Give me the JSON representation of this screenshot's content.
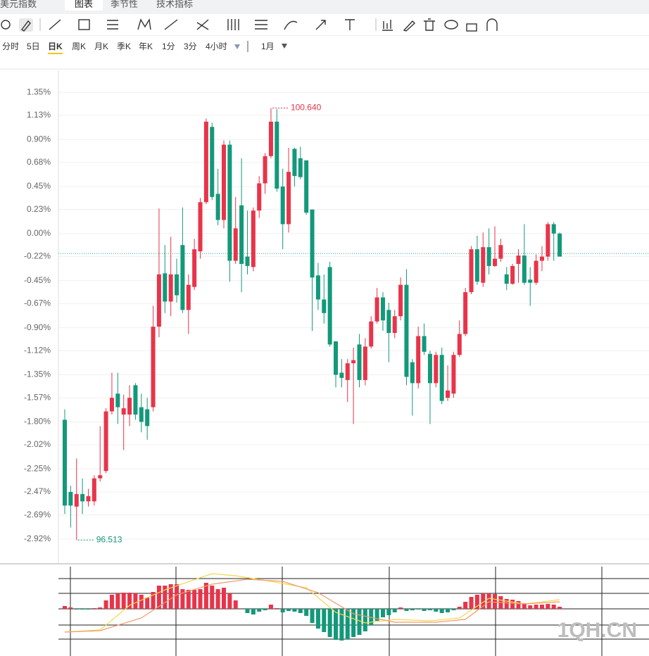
{
  "tabs": [
    "美元指数",
    "图表",
    "季节性",
    "技术指标"
  ],
  "periods": [
    "分时",
    "5日",
    "日K",
    "周K",
    "月K",
    "季K",
    "年K",
    "1分",
    "3分",
    "4小时",
    "1月"
  ],
  "active_period": "日K",
  "watermark": "1QH.CN",
  "chart_data": {
    "type": "candlestick",
    "up_color": "#e8344a",
    "down_color": "#12997a",
    "ylim": [
      -3.15,
      1.56
    ],
    "yticks": [
      {
        "value": 1.35,
        "label": "1.35%"
      },
      {
        "value": 1.13,
        "label": "1.13%"
      },
      {
        "value": 0.9,
        "label": "0.90%"
      },
      {
        "value": 0.68,
        "label": "0.68%"
      },
      {
        "value": 0.45,
        "label": "0.45%"
      },
      {
        "value": 0.23,
        "label": "0.23%"
      },
      {
        "value": 0,
        "label": "0.00%"
      },
      {
        "value": -0.22,
        "label": "-0.22%"
      },
      {
        "value": -0.45,
        "label": "-0.45%"
      },
      {
        "value": -0.67,
        "label": "-0.67%"
      },
      {
        "value": -0.9,
        "label": "-0.90%"
      },
      {
        "value": -1.12,
        "label": "-1.12%"
      },
      {
        "value": -1.35,
        "label": "-1.35%"
      },
      {
        "value": -1.57,
        "label": "-1.57%"
      },
      {
        "value": -1.8,
        "label": "-1.80%"
      },
      {
        "value": -2.02,
        "label": "-2.02%"
      },
      {
        "value": -2.25,
        "label": "-2.25%"
      },
      {
        "value": -2.47,
        "label": "-2.47%"
      },
      {
        "value": -2.69,
        "label": "-2.69%"
      },
      {
        "value": -2.92,
        "label": "-2.92%"
      }
    ],
    "grid": true,
    "open": [
      -1.78,
      -2.47,
      -2.61,
      -2.49,
      -2.56,
      -2.56,
      -2.34,
      -2.27,
      -1.7,
      -1.53,
      -1.73,
      -1.73,
      -1.45,
      -1.66,
      -1.68,
      -1.66,
      -0.89,
      -0.38,
      -0.65,
      -0.39,
      -0.11,
      -0.73,
      -0.51,
      -0.17,
      0.3,
      1.02,
      0.38,
      0.13,
      0.85,
      -0.26,
      0.27,
      -0.22,
      -0.32,
      0.22,
      0.48,
      0.74,
      1.07,
      0.45,
      0.09,
      0.81,
      0.72,
      0.7,
      0.23,
      -0.4,
      -0.63,
      -0.32,
      -1.03,
      -1.33,
      -1.4,
      -1.24,
      -1.06,
      -1.4,
      -1.08,
      -0.84,
      -0.61,
      -0.73,
      -0.95,
      -0.79,
      -0.49,
      -1.23,
      -1.43,
      -0.98,
      -1.15,
      -1.43,
      -1.16,
      -1.57,
      -1.53,
      -1.16,
      -0.96,
      -0.56,
      -0.15,
      -0.47,
      -0.13,
      -0.31,
      -0.24,
      -0.39,
      -0.48,
      -0.29,
      -0.21,
      -0.44,
      -0.47,
      -0.26,
      -0.22,
      0.09,
      0.0
    ],
    "high": [
      -1.68,
      -2.41,
      -2.15,
      -2.34,
      -2.44,
      -2.31,
      -1.84,
      -1.67,
      -1.33,
      -1.33,
      -1.54,
      -1.45,
      -1.43,
      -1.53,
      -1.57,
      -0.69,
      0.24,
      -0.11,
      -0.03,
      -0.24,
      0.25,
      -0.39,
      -0.05,
      0.34,
      1.1,
      1.06,
      0.62,
      0.89,
      0.89,
      0.35,
      0.72,
      0.22,
      0.25,
      0.55,
      0.77,
      1.2,
      1.19,
      0.62,
      0.82,
      0.82,
      0.83,
      0.7,
      0.23,
      -0.28,
      -0.39,
      -0.27,
      -1.03,
      -1.2,
      -1.2,
      -1.09,
      -0.96,
      -1.0,
      -0.79,
      -0.52,
      -0.56,
      -0.66,
      -0.73,
      -0.42,
      -0.34,
      -1.2,
      -0.89,
      -0.86,
      -1.12,
      -1.13,
      -1.09,
      -1.26,
      -1.13,
      -0.83,
      -0.52,
      -0.12,
      -0.02,
      0.01,
      0.05,
      0.07,
      -0.05,
      -0.32,
      -0.29,
      -0.15,
      0.09,
      -0.32,
      -0.2,
      -0.12,
      0.11,
      0.11,
      0.01
    ],
    "low": [
      -2.68,
      -2.81,
      -2.93,
      -2.68,
      -2.61,
      -2.6,
      -2.37,
      -2.29,
      -1.73,
      -1.82,
      -2.07,
      -1.84,
      -1.78,
      -1.9,
      -1.97,
      -1.7,
      -0.99,
      -0.76,
      -0.79,
      -0.66,
      -0.76,
      -0.96,
      -0.54,
      -0.24,
      0.28,
      0.32,
      0.08,
      0.05,
      -0.46,
      -0.29,
      -0.56,
      -0.39,
      -0.36,
      0.15,
      0.38,
      0.72,
      0.4,
      -0.15,
      0.01,
      0.45,
      0.52,
      0.18,
      -0.93,
      -0.73,
      -0.86,
      -1.08,
      -1.47,
      -1.47,
      -1.61,
      -1.82,
      -1.47,
      -1.45,
      -1.1,
      -0.86,
      -0.93,
      -1.23,
      -1.0,
      -0.83,
      -1.45,
      -1.74,
      -1.48,
      -1.16,
      -1.82,
      -1.47,
      -1.63,
      -1.6,
      -1.57,
      -1.18,
      -0.98,
      -0.58,
      -0.49,
      -0.51,
      -0.39,
      -0.32,
      -0.27,
      -0.54,
      -0.49,
      -0.47,
      -0.49,
      -0.69,
      -0.49,
      -0.36,
      -0.26,
      -0.26,
      -0.22
    ],
    "close": [
      -2.6,
      -2.6,
      -2.49,
      -2.56,
      -2.51,
      -2.34,
      -2.31,
      -1.7,
      -1.57,
      -1.66,
      -1.67,
      -1.57,
      -1.73,
      -1.8,
      -1.84,
      -0.89,
      -0.39,
      -0.65,
      -0.39,
      -0.59,
      -0.73,
      -0.49,
      -0.15,
      0.3,
      1.07,
      0.35,
      0.13,
      0.85,
      -0.26,
      0.05,
      -0.29,
      -0.31,
      0.22,
      0.48,
      0.74,
      1.07,
      0.43,
      0.09,
      0.59,
      0.55,
      0.54,
      0.2,
      -0.42,
      -0.63,
      -0.76,
      -1.06,
      -1.35,
      -1.38,
      -1.24,
      -1.21,
      -1.4,
      -1.08,
      -0.84,
      -0.61,
      -0.83,
      -0.95,
      -0.79,
      -0.49,
      -1.37,
      -1.43,
      -0.98,
      -1.13,
      -1.43,
      -1.16,
      -1.6,
      -1.5,
      -1.16,
      -0.96,
      -0.56,
      -0.15,
      -0.46,
      -0.13,
      -0.31,
      -0.24,
      -0.11,
      -0.48,
      -0.31,
      -0.21,
      -0.47,
      -0.47,
      -0.26,
      -0.22,
      0.09,
      0.0,
      -0.22
    ],
    "high_label": "100.640",
    "low_label": "96.513",
    "price_line": -0.19,
    "macd": {
      "ylim": [
        -60,
        60
      ],
      "histogram": [
        4,
        2,
        -1,
        -1,
        -1,
        1,
        2,
        12,
        20,
        22,
        23,
        23,
        22,
        20,
        16,
        24,
        33,
        33,
        35,
        35,
        28,
        27,
        27,
        28,
        37,
        33,
        28,
        30,
        22,
        12,
        0,
        -6,
        -8,
        -4,
        -2,
        6,
        1,
        -5,
        -3,
        -4,
        -6,
        -10,
        -20,
        -28,
        -33,
        -40,
        -44,
        -45,
        -43,
        -40,
        -37,
        -32,
        -23,
        -17,
        -12,
        -9,
        -5,
        2,
        -3,
        -2,
        -1,
        -3,
        -2,
        -4,
        -6,
        -5,
        -2,
        3,
        10,
        17,
        20,
        22,
        22,
        21,
        18,
        14,
        13,
        11,
        8,
        5,
        6,
        6,
        7,
        6,
        3
      ],
      "lines": [
        {
          "color": "#f2d84e",
          "x": [
            0,
            6,
            11,
            17,
            25,
            29,
            35,
            41,
            46,
            51,
            56,
            62,
            67,
            72,
            78,
            84
          ],
          "values": [
            -33,
            -30,
            5,
            27,
            50,
            47,
            39,
            30,
            -5,
            -20,
            -15,
            -17,
            -13,
            15,
            7,
            13
          ]
        },
        {
          "color": "#f09a6a",
          "x": [
            0,
            6,
            13,
            19,
            25,
            31,
            37,
            43,
            49,
            56,
            63,
            68,
            72,
            78,
            84
          ],
          "values": [
            -33,
            -31,
            -13,
            20,
            35,
            42,
            39,
            23,
            -7,
            -19,
            -19,
            -15,
            10,
            7,
            10
          ]
        }
      ]
    }
  }
}
